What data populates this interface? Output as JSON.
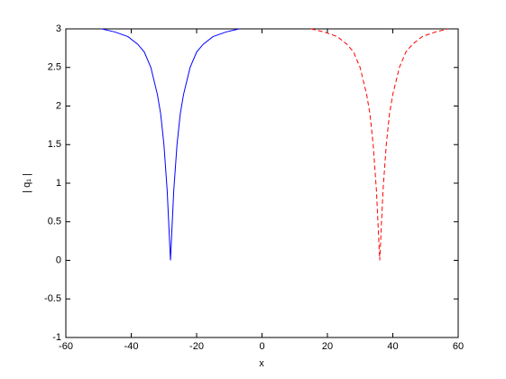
{
  "chart_data": {
    "type": "line",
    "xlabel": "x",
    "ylabel": "| q₁ |",
    "xlim": [
      -60,
      60
    ],
    "ylim": [
      -1,
      3
    ],
    "xticks": [
      -60,
      -40,
      -20,
      0,
      20,
      40,
      60
    ],
    "yticks": [
      -1,
      -0.5,
      0,
      0.5,
      1,
      1.5,
      2,
      2.5,
      3
    ],
    "series": [
      {
        "color": "#0000ff",
        "dash": "solid",
        "x": [
          -49,
          -45,
          -41,
          -38,
          -36,
          -34,
          -32,
          -31,
          -30,
          -29,
          -28,
          -27,
          -26,
          -25,
          -24,
          -22,
          -20,
          -18,
          -15,
          -11,
          -7
        ],
        "values": [
          3,
          2.96,
          2.9,
          2.8,
          2.7,
          2.5,
          2.15,
          1.9,
          1.5,
          0.9,
          0,
          0.9,
          1.5,
          1.9,
          2.15,
          2.5,
          2.7,
          2.8,
          2.9,
          2.96,
          3
        ]
      },
      {
        "color": "#ff0000",
        "dash": "dashed",
        "x": [
          15,
          19,
          23,
          26,
          28,
          30,
          32,
          33,
          34,
          35,
          36,
          37,
          38,
          39,
          40,
          42,
          44,
          46,
          49,
          53,
          57
        ],
        "values": [
          3,
          2.96,
          2.9,
          2.8,
          2.7,
          2.5,
          2.15,
          1.9,
          1.5,
          0.9,
          0,
          0.9,
          1.5,
          1.9,
          2.15,
          2.5,
          2.7,
          2.8,
          2.9,
          2.96,
          3
        ]
      }
    ]
  }
}
